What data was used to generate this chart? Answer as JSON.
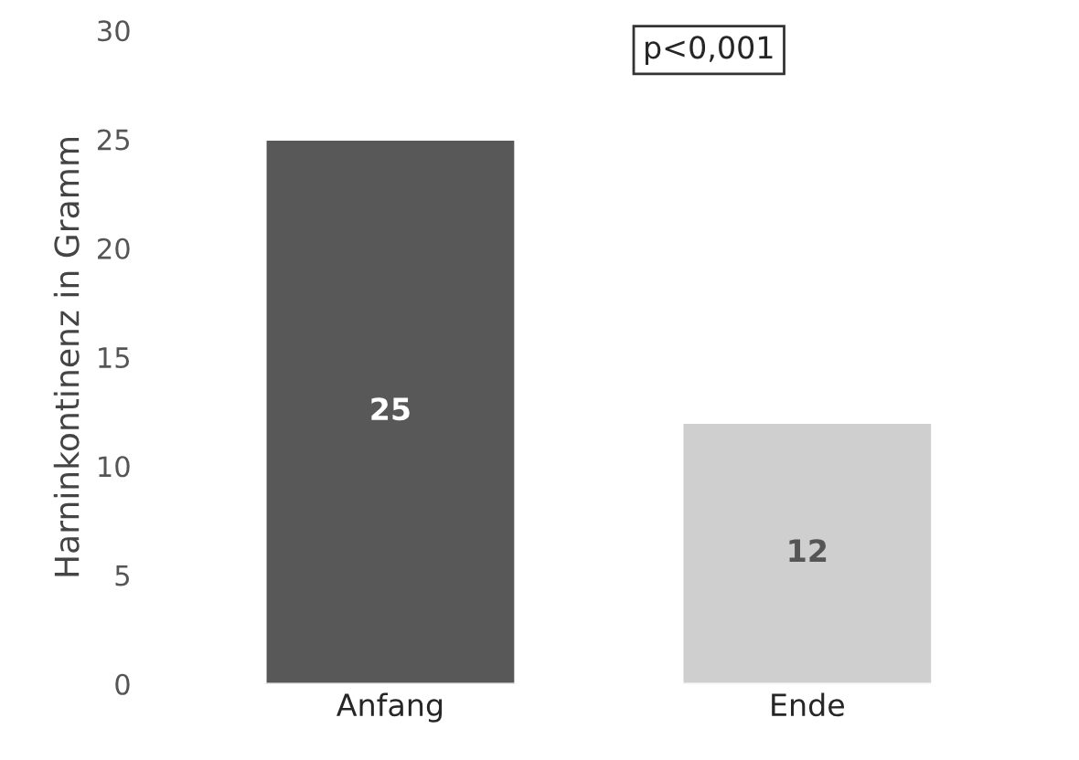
{
  "chart_data": {
    "type": "bar",
    "ylabel": "Harninkontinenz in Gramm",
    "categories": [
      "Anfang",
      "Ende"
    ],
    "values": [
      25,
      12
    ],
    "colors": [
      "#585858",
      "#cfcfcf"
    ],
    "data_labels": true,
    "ylim": [
      0,
      30
    ],
    "yticks": [
      0,
      5,
      10,
      15,
      20,
      25,
      30
    ],
    "annotations": [
      "p<0,001"
    ],
    "grid": false,
    "legend": false
  }
}
